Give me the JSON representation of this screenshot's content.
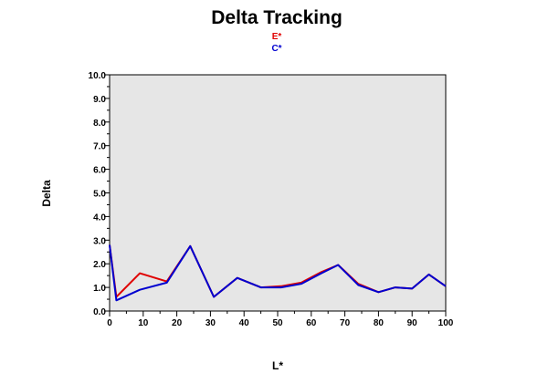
{
  "chart_data": {
    "type": "line",
    "title": "Delta Tracking",
    "xlabel": "L*",
    "ylabel": "Delta",
    "xlim": [
      0,
      100
    ],
    "ylim": [
      0,
      10
    ],
    "xticks": [
      "0",
      "10",
      "20",
      "30",
      "40",
      "50",
      "60",
      "70",
      "80",
      "90",
      "100"
    ],
    "yticks": [
      "0.0",
      "1.0",
      "2.0",
      "3.0",
      "4.0",
      "5.0",
      "6.0",
      "7.0",
      "8.0",
      "9.0",
      "10.0"
    ],
    "grid": false,
    "legend_position": "top-center",
    "plot_background": "#e6e6e6",
    "series": [
      {
        "name": "E*",
        "color": "#e00000",
        "x": [
          0,
          2,
          9,
          17,
          24,
          31,
          38,
          45,
          51,
          57,
          63,
          68,
          74,
          80,
          85,
          90,
          95,
          100
        ],
        "y": [
          2.8,
          0.6,
          1.6,
          1.25,
          2.75,
          0.6,
          1.4,
          1.0,
          1.05,
          1.2,
          1.65,
          1.95,
          1.15,
          0.8,
          1.0,
          0.95,
          1.55,
          1.05
        ]
      },
      {
        "name": "C*",
        "color": "#0000d0",
        "x": [
          0,
          2,
          9,
          17,
          24,
          31,
          38,
          45,
          51,
          57,
          63,
          68,
          74,
          80,
          85,
          90,
          95,
          100
        ],
        "y": [
          2.8,
          0.45,
          0.9,
          1.2,
          2.75,
          0.6,
          1.4,
          1.0,
          1.0,
          1.15,
          1.6,
          1.95,
          1.1,
          0.8,
          1.0,
          0.95,
          1.55,
          1.05
        ]
      }
    ]
  }
}
